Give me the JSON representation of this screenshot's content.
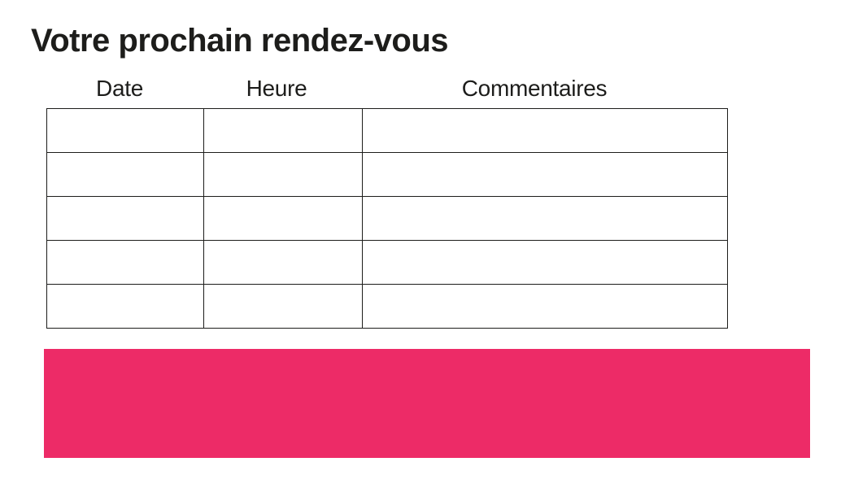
{
  "page": {
    "title": "Votre prochain rendez-vous"
  },
  "table": {
    "headers": [
      "Date",
      "Heure",
      "Commentaires"
    ],
    "rows": [
      [
        "",
        "",
        ""
      ],
      [
        "",
        "",
        ""
      ],
      [
        "",
        "",
        ""
      ],
      [
        "",
        "",
        ""
      ],
      [
        "",
        "",
        ""
      ]
    ]
  },
  "colors": {
    "accent_pink": "#ED2B67",
    "text_black": "#1D1D1B",
    "table_border": "#1D1D1B"
  }
}
